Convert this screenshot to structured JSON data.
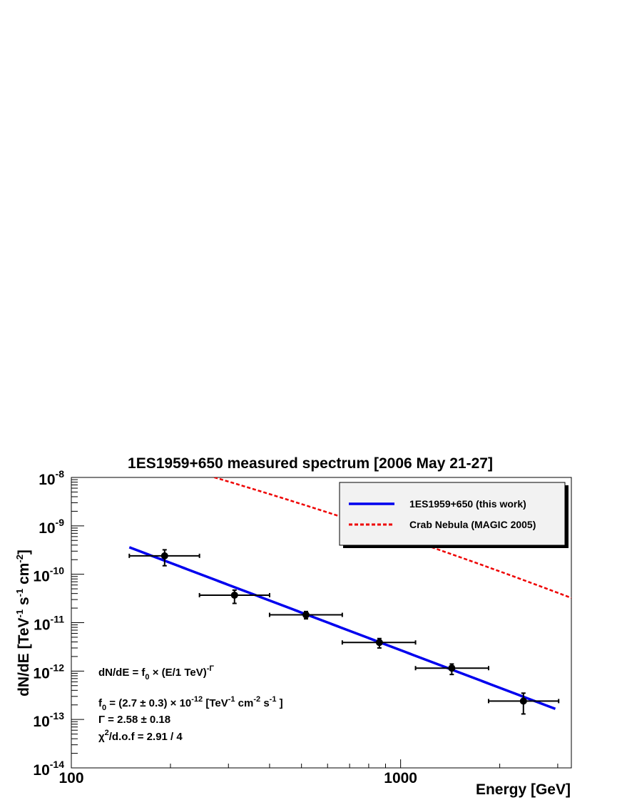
{
  "chart_data": {
    "type": "scatter",
    "title": "1ES1959+650 measured spectrum [2006 May 21-27]",
    "xlabel": "Energy [GeV]",
    "ylabel_parts": {
      "base": "dN/dE [TeV",
      "sup1": "-1",
      "mid": " s",
      "sup2": "-1",
      "mid2": " cm",
      "sup3": "-2",
      "end": "]"
    },
    "x_scale": "log",
    "y_scale": "log",
    "xlim": [
      100,
      3300
    ],
    "ylim": [
      1e-14,
      1e-08
    ],
    "x_tick_labels": [
      {
        "value": 100,
        "label": "100"
      },
      {
        "value": 1000,
        "label": "1000"
      }
    ],
    "y_tick_labels": [
      {
        "value": 1e-08,
        "base": "10",
        "exp": "-8"
      },
      {
        "value": 1e-09,
        "base": "10",
        "exp": "-9"
      },
      {
        "value": 1e-10,
        "base": "10",
        "exp": "-10"
      },
      {
        "value": 1e-11,
        "base": "10",
        "exp": "-11"
      },
      {
        "value": 1e-12,
        "base": "10",
        "exp": "-12"
      },
      {
        "value": 1e-13,
        "base": "10",
        "exp": "-13"
      },
      {
        "value": 1e-14,
        "base": "10",
        "exp": "-14"
      }
    ],
    "data_points": [
      {
        "x": 192,
        "y": 2.4e-10,
        "x_low": 150,
        "x_high": 245,
        "y_low": 1.5e-10,
        "y_high": 3.2e-10
      },
      {
        "x": 313,
        "y": 3.7e-11,
        "x_low": 245,
        "x_high": 400,
        "y_low": 2.5e-11,
        "y_high": 4.7e-11
      },
      {
        "x": 516,
        "y": 1.45e-11,
        "x_low": 400,
        "x_high": 665,
        "y_low": 1.2e-11,
        "y_high": 1.7e-11
      },
      {
        "x": 862,
        "y": 3.9e-12,
        "x_low": 665,
        "x_high": 1110,
        "y_low": 3e-12,
        "y_high": 4.7e-12
      },
      {
        "x": 1430,
        "y": 1.15e-12,
        "x_low": 1110,
        "x_high": 1850,
        "y_low": 8.5e-13,
        "y_high": 1.4e-12
      },
      {
        "x": 2360,
        "y": 2.4e-13,
        "x_low": 1850,
        "x_high": 3020,
        "y_low": 1.3e-13,
        "y_high": 3.5e-13
      }
    ],
    "series": [
      {
        "name": "1ES1959+650 (this work)",
        "color": "#0000ee",
        "style": "solid",
        "model": "power_law",
        "f0": 2.7e-12,
        "index": 2.58,
        "x_range": [
          150,
          2950
        ]
      },
      {
        "name": "Crab Nebula (MAGIC 2005)",
        "color": "#ee0000",
        "style": "dashed",
        "model": "log_parabola",
        "f0": 6e-10,
        "a": 2.31,
        "b": 0.26,
        "x_range": [
          100,
          3300
        ]
      }
    ],
    "legend_position": "top-right",
    "grid": false,
    "annotation": {
      "formula": {
        "a": "dN/dE = f",
        "a_sub": "0",
        "b": " × (E/1 TeV)",
        "b_sup": "-Γ"
      },
      "norm": {
        "a": "f",
        "a_sub": "0",
        "b": " = (2.7 ± 0.3) × 10",
        "b_sup": "-12",
        "c": " [TeV",
        "c_sup": "-1",
        "d": " cm",
        "d_sup": "-2",
        "e": " s",
        "e_sup": "-1",
        "f": " ]"
      },
      "index": "Γ = 2.58 ± 0.18",
      "chi": {
        "a": "χ",
        "a_sup": "2",
        "b": "/d.o.f = 2.91 / 4"
      }
    }
  }
}
